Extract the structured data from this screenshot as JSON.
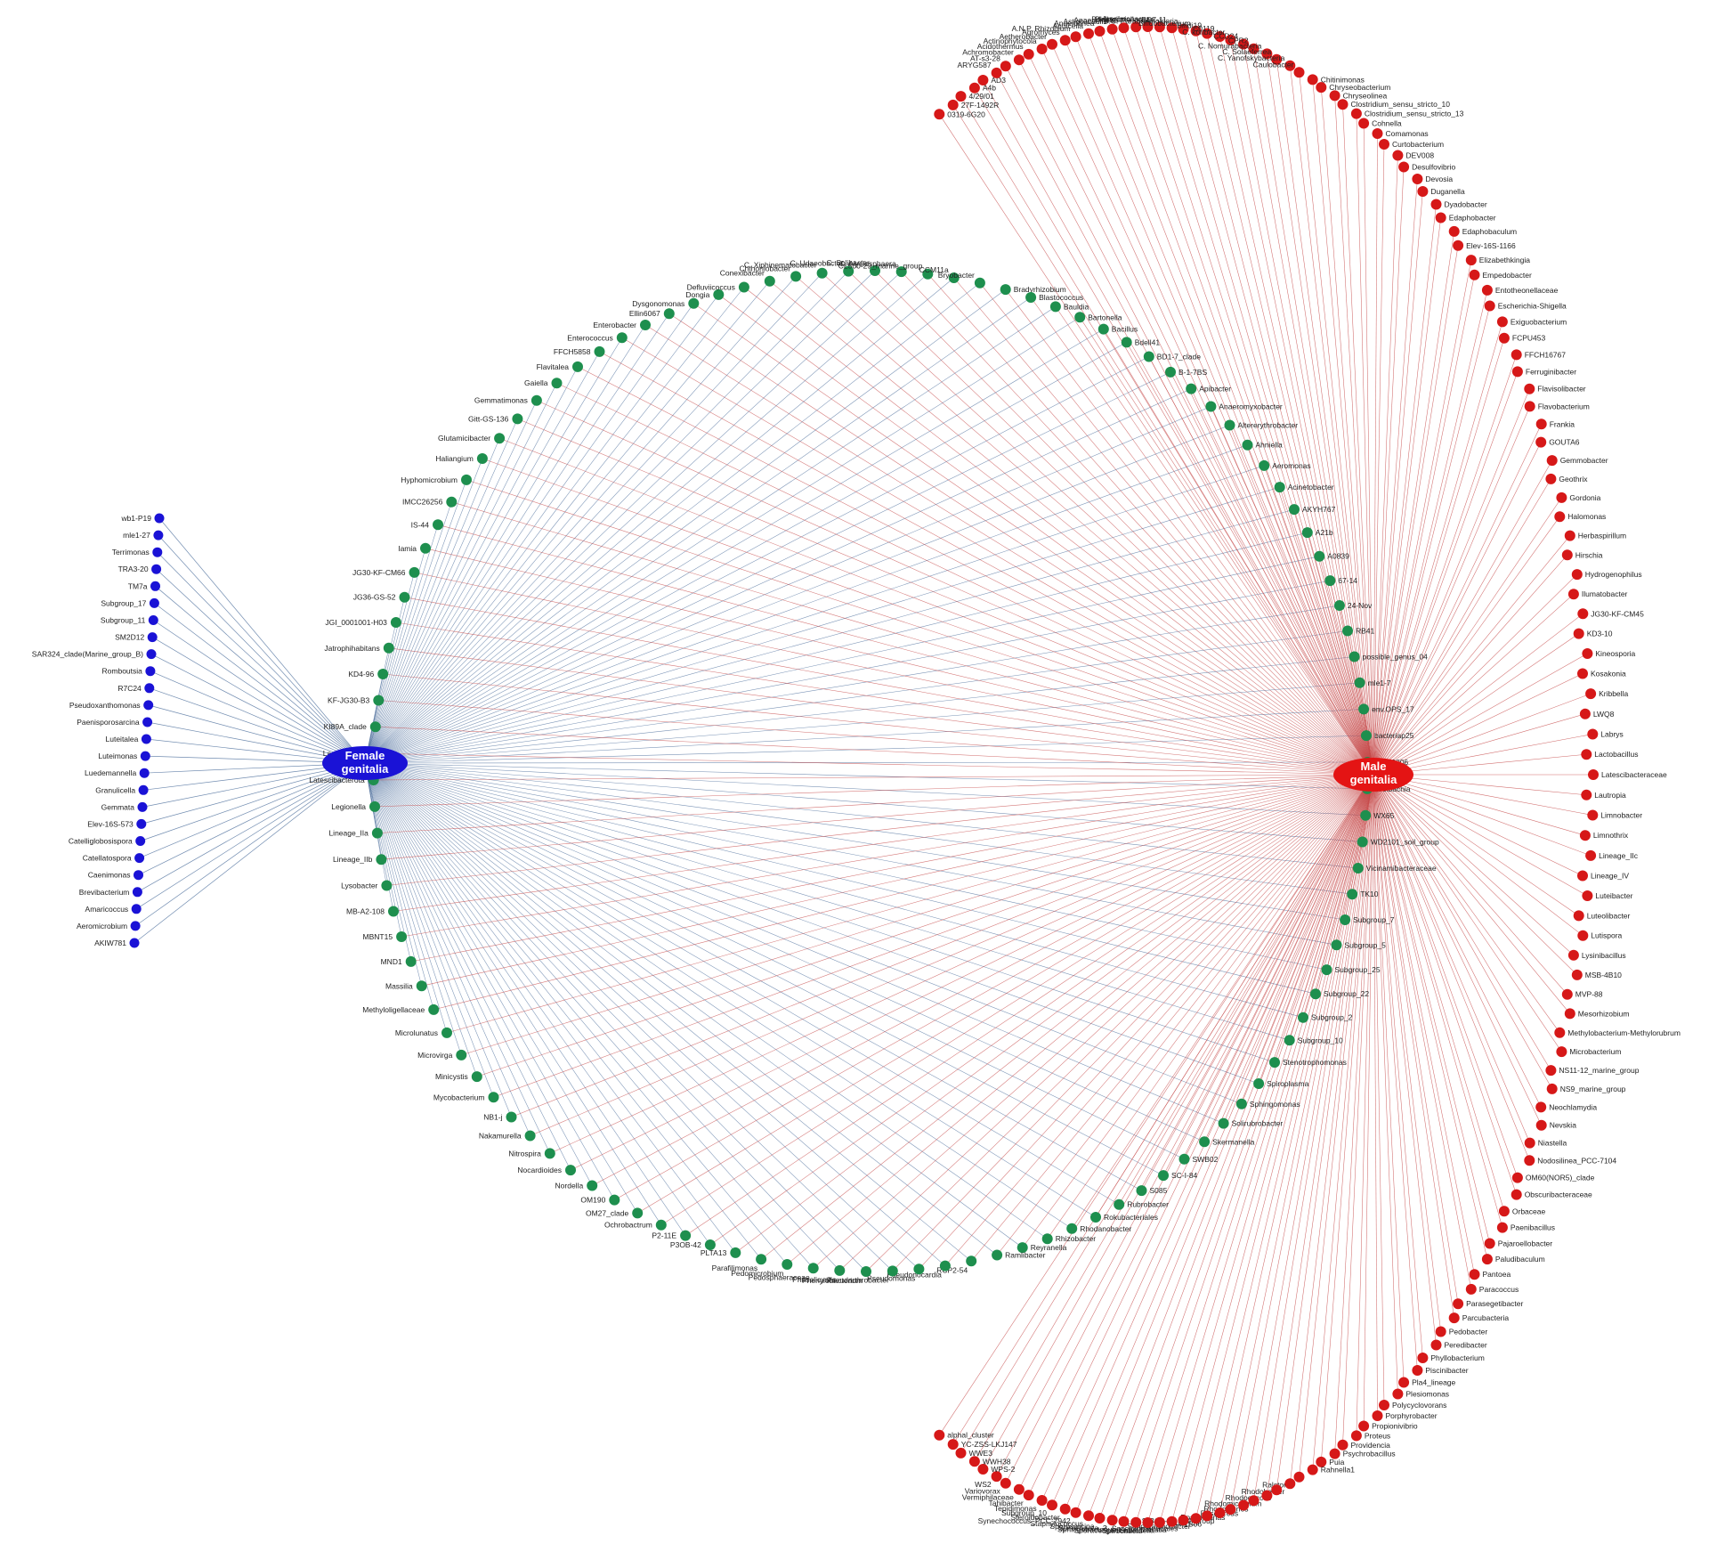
{
  "hubs": {
    "female": {
      "line1": "Female",
      "line2": "genitalia",
      "color": "#1a12d6"
    },
    "male": {
      "line1": "Male",
      "line2": "genitalia",
      "color": "#e41414"
    }
  },
  "colors": {
    "female_only": "#1a12d6",
    "shared": "#1e8f4e",
    "male_only": "#d61818",
    "female_edge": "#4e6f9c",
    "male_edge": "#c64848"
  },
  "female_only_nodes": [
    "wb1-P19",
    "mle1-27",
    "Terrimonas",
    "TRA3-20",
    "TM7a",
    "Subgroup_17",
    "Subgroup_11",
    "SM2D12",
    "SAR324_clade(Marine_group_B)",
    "Romboutsia",
    "R7C24",
    "Pseudoxanthomonas",
    "Paenisporosarcina",
    "Luteitalea",
    "Luteimonas",
    "Luedemannella",
    "Granulicella",
    "Gemmata",
    "Elev-16S-573",
    "Catelliglobosispora",
    "Catellatospora",
    "Caenimonas",
    "Brevibacterium",
    "Amaricoccus",
    "Aeromicrobium",
    "AKIW781"
  ],
  "shared_nodes": [
    "Enterococcus",
    "Enterobacter",
    "Ellin6067",
    "Dysgonomonas",
    "Dongia",
    "Defluviicoccus",
    "Conexibacter",
    "Chthoniobacter",
    "C. Xiphinematobacter",
    "C. Udaeobacter",
    "C. Solibacter",
    "C. Alysiosphaera",
    "CL500-29_marine_group",
    "CCM11a",
    "Bryobacter",
    "Bradyrhizobium",
    "Blastococcus",
    "Bauldia",
    "Bartonella",
    "Bacillus",
    "Bdell41",
    "BD1-7_clade",
    "B-1-7BS",
    "Apibacter",
    "Anaeromyxobacter",
    "Altererythrobacter",
    "Ahniella",
    "Aeromonas",
    "Acinetobacter",
    "AKYH767",
    "A21b",
    "A0839",
    "67-14",
    "24-Nov",
    "RB41",
    "possible_genus_04",
    "mle1-7",
    "env.OPS_17",
    "bacteriap25",
    "ZOR0006",
    "Wolbachia",
    "WX65",
    "WD2101_soil_group",
    "Vicinamibacteraceae",
    "TK10",
    "Subgroup_7",
    "Subgroup_5",
    "Subgroup_25",
    "Subgroup_22",
    "Subgroup_2",
    "Subgroup_10",
    "Stenotrophomonas",
    "Spiroplasma",
    "Sphingomonas",
    "Solirubrobacter",
    "Skermanella",
    "SWB02",
    "SC-I-84",
    "S085",
    "Rubrobacter",
    "Rokubacteriales",
    "Rhodanobacter",
    "Rhizobacter",
    "Reyranella",
    "Ramlibacter",
    "RCP2-54",
    "Pseudonocardia",
    "Pseudomonas",
    "Pseudarthrobacter",
    "Phenylobacterium",
    "Phaselicystis",
    "Pedosphaeraceae",
    "Pedomicrobium",
    "Parafilimonas",
    "PLTA13",
    "P3OB-42",
    "P2-11E",
    "Ochrobactrum",
    "OM27_clade",
    "OM190",
    "Nordella",
    "Nocardioides",
    "Nitrospira",
    "Nakamurella",
    "NB1-j",
    "Mycobacterium",
    "Minicystis",
    "Microvirga",
    "Microlunatus",
    "Methyloligellaceae",
    "Massilia",
    "MND1",
    "MBNT15",
    "MB-A2-108",
    "Lysobacter",
    "Lineage_IIb",
    "Lineage_IIa",
    "Legionella",
    "Latescibacterota",
    "Lactococcus",
    "KI89A_clade",
    "KF-JG30-B3",
    "KD4-96",
    "Jatrophihabitans",
    "JGI_0001001-H03",
    "JG36-GS-52",
    "JG30-KF-CM66",
    "Iamia",
    "IS-44",
    "IMCC26256",
    "Hyphomicrobium",
    "Haliangium",
    "Glutamicibacter",
    "Gitt-GS-136",
    "Gemmatimonas",
    "Gaiella",
    "Flavitalea",
    "FFCH5858"
  ],
  "male_only_nodes": [
    "0319-6G20",
    "27F-1492R",
    "4/29/01",
    "A4b",
    "AD3",
    "ARYG587",
    "AT-s3-28",
    "Achromobacter",
    "Acidothermus",
    "Actinophytocola",
    "Aetherobacter",
    "Agromyces",
    "A.N.P. Rhizobium",
    "Aquicella",
    "Anaerolinea",
    "Asticcacaulis",
    "Anaerolineae",
    "Bdellovibrio",
    "Arenimonas",
    "Blastocatellaceae",
    "BD7-11",
    "B.C. Paraburkholderia",
    "Bifidobacterium",
    "Bifidi19",
    "C0119",
    "C. koribacter",
    "CCD24",
    "CPR2",
    "C. Nomurabacteria",
    "C. Solaeferrea",
    "C. Yanofskybacteria",
    "Caulobacter",
    "Chitinimonas",
    "Chryseobacterium",
    "Chryseolinea",
    "Clostridium_sensu_stricto_10",
    "Clostridium_sensu_stricto_13",
    "Cohnella",
    "Comamonas",
    "Curtobacterium",
    "DEV008",
    "Desulfovibrio",
    "Devosia",
    "Duganella",
    "Dyadobacter",
    "Edaphobacter",
    "Edaphobaculum",
    "Elev-16S-1166",
    "Elizabethkingia",
    "Empedobacter",
    "Entotheonellaceae",
    "Escherichia-Shigella",
    "Exiguobacterium",
    "FCPU453",
    "FFCH16767",
    "Ferruginibacter",
    "Flavisolibacter",
    "Flavobacterium",
    "Frankia",
    "GOUTA6",
    "Gemmobacter",
    "Geothrix",
    "Gordonia",
    "Halomonas",
    "Herbaspirillum",
    "Hirschia",
    "Hydrogenophilus",
    "Ilumatobacter",
    "JG30-KF-CM45",
    "KD3-10",
    "Kineosporia",
    "Kosakonia",
    "Kribbella",
    "LWQ8",
    "Labrys",
    "Lactobacillus",
    "Latescibacteraceae",
    "Lautropia",
    "Limnobacter",
    "Limnothrix",
    "Lineage_IIc",
    "Lineage_IV",
    "Luteibacter",
    "Luteolibacter",
    "Lutispora",
    "Lysinibacillus",
    "MSB-4B10",
    "MVP-88",
    "Mesorhizobium",
    "Methylobacterium-Methylorubrum",
    "Microbacterium",
    "NS11-12_marine_group",
    "NS9_marine_group",
    "Neochlamydia",
    "Nevskia",
    "Niastella",
    "Nodosilinea_PCC-7104",
    "OM60(NOR5)_clade",
    "Obscuribacteraceae",
    "Orbaceae",
    "Paenibacillus",
    "Pajaroellobacter",
    "Paludibaculum",
    "Pantoea",
    "Paracoccus",
    "Parasegetibacter",
    "Parcubacteria",
    "Pedobacter",
    "Peredibacter",
    "Phyllobacterium",
    "Piscinibacter",
    "Pla4_lineage",
    "Plesiomonas",
    "Polycyclovorans",
    "Porphyrobacter",
    "Propionivibrio",
    "Proteus",
    "Providencia",
    "Psychrobacillus",
    "Puia",
    "Rahnella1",
    "Ralstonia",
    "Rhodobacter",
    "Rhodococcus",
    "Rhodomicrobium",
    "Rhodoplanes",
    "Roseiarcus",
    "Roseomonas",
    "S-BQ2-57_soil_group",
    "SM1B06",
    "Sandaracinobacter",
    "Saccharimonadales",
    "Serratia",
    "Sebaldella",
    "Spirochaeta",
    "Sporacetigenium",
    "Sphingobacterium",
    "Spirochaeta_2",
    "Sporosarcina",
    "Staphylococcus",
    "Synechococcus_PCC-7942",
    "Steroidobacter",
    "Subgroup_10",
    "Tepidimonas",
    "Tahibacter",
    "Vermiphilaceae",
    "Variovorax",
    "WS2",
    "WPS-2",
    "WWH38",
    "WWE3",
    "YC-ZSS-LKJ147",
    "alphal_cluster"
  ]
}
